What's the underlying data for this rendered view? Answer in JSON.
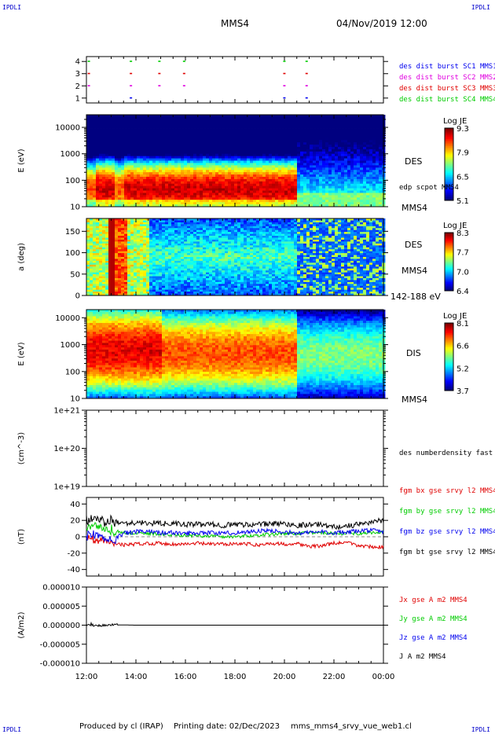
{
  "header": {
    "spacecraft": "MMS4",
    "datetime": "04/Nov/2019 12:00",
    "corner_tl": "IPDLI",
    "corner_tr": "IPDLI",
    "corner_bl": "IPDLI",
    "corner_br": "IPDLI"
  },
  "footer": {
    "produced_by": "Produced by cl (IRAP)",
    "printing_date": "Printing date: 02/Dec/2023",
    "filename": "mms_mms4_srvy_vue_web1.cl"
  },
  "x_axis": {
    "ticks": [
      "12:00",
      "14:00",
      "16:00",
      "18:00",
      "20:00",
      "22:00",
      "00:00"
    ],
    "range_hours": [
      12,
      24
    ]
  },
  "chart_data": [
    {
      "type": "scatter",
      "id": "burst",
      "yticks": [
        "1",
        "2",
        "3",
        "4"
      ],
      "ylim": [
        0.6,
        4.4
      ],
      "legend": [
        {
          "text": "des dist burst SC1 MMS1",
          "color": "#0000ee"
        },
        {
          "text": "des dist burst SC2 MMS2",
          "color": "#e000e0"
        },
        {
          "text": "des dist burst SC3 MMS3",
          "color": "#e00000"
        },
        {
          "text": "des dist burst SC4 MMS4",
          "color": "#00cc00"
        }
      ],
      "series": [
        {
          "y": 4,
          "color": "#00cc00",
          "times": [
            12.05,
            13.75,
            14.9,
            15.9,
            19.95,
            20.85
          ]
        },
        {
          "y": 3,
          "color": "#e00000",
          "times": [
            12.05,
            13.75,
            14.9,
            15.9,
            19.95,
            20.85
          ]
        },
        {
          "y": 2,
          "color": "#e000e0",
          "times": [
            12.05,
            13.75,
            14.9,
            15.9,
            19.95,
            20.85
          ]
        },
        {
          "y": 1,
          "color": "#0000ee",
          "times": [
            13.75,
            19.95,
            20.85
          ]
        }
      ]
    },
    {
      "type": "heatmap",
      "id": "des_energy",
      "ylabel": "E (eV)",
      "ylog": true,
      "ylim": [
        10,
        30000
      ],
      "yticks": [
        "10",
        "100",
        "1000",
        "10000"
      ],
      "right_labels": [
        "DES",
        "edp scpot MMS4",
        "MMS4"
      ],
      "colorbar": {
        "title": "Log JE",
        "ticks": [
          "9.3",
          "7.9",
          "6.5",
          "5.1"
        ]
      },
      "peak_energy_eV": [
        40,
        40,
        45,
        40,
        40,
        45,
        50,
        45,
        40,
        45,
        50,
        45,
        40
      ],
      "peak_time_end_h": 20.5
    },
    {
      "type": "heatmap",
      "id": "des_pitch",
      "ylabel": "a (deg)",
      "ylim": [
        0,
        180
      ],
      "yticks": [
        "0",
        "50",
        "100",
        "150"
      ],
      "right_labels": [
        "DES",
        "MMS4",
        "142-188 eV"
      ],
      "colorbar": {
        "title": "Log JE",
        "ticks": [
          "8.3",
          "7.7",
          "7.0",
          "6.4"
        ]
      }
    },
    {
      "type": "heatmap",
      "id": "dis_energy",
      "ylabel": "E (eV)",
      "ylog": true,
      "ylim": [
        10,
        20000
      ],
      "yticks": [
        "10",
        "100",
        "1000",
        "10000"
      ],
      "right_labels": [
        "DIS",
        "MMS4"
      ],
      "colorbar": {
        "title": "Log JE",
        "ticks": [
          "8.1",
          "6.6",
          "5.2",
          "3.7"
        ]
      },
      "peak_energy_eV": 600,
      "peak_time_end_h": 20.5
    },
    {
      "type": "line",
      "id": "density",
      "ylabel": "(cm^-3)",
      "ylog": true,
      "ylim": [
        1e+19,
        1e+21
      ],
      "yticks": [
        "1e+19",
        "1e+20",
        "1e+21"
      ],
      "series": [],
      "right_labels": [
        "des numberdensity fast M"
      ]
    },
    {
      "type": "line",
      "id": "fgm",
      "ylabel": "(nT)",
      "ylim": [
        -48,
        48
      ],
      "yticks": [
        "-40",
        "-20",
        "0",
        "20",
        "40"
      ],
      "legend": [
        {
          "text": "fgm bx gse srvy l2 MMS4",
          "color": "#e00000"
        },
        {
          "text": "fgm by gse srvy l2 MMS4",
          "color": "#00cc00"
        },
        {
          "text": "fgm bz gse srvy l2 MMS4",
          "color": "#0000ee"
        },
        {
          "text": "fgm bt gse srvy l2 MMS4",
          "color": "#000000"
        }
      ],
      "series": [
        {
          "name": "fgm bx gse srvy l2 MMS4",
          "color": "#e00000",
          "x": [
            12,
            12.5,
            13,
            13.5,
            14,
            14.5,
            15,
            15.5,
            16,
            16.5,
            17,
            17.5,
            18,
            18.5,
            19,
            19.5,
            20,
            20.5,
            21,
            21.5,
            22,
            22.5,
            23,
            23.5,
            24
          ],
          "y": [
            -2,
            -5,
            -8,
            -10,
            -9,
            -8,
            -8,
            -9,
            -9,
            -8,
            -9,
            -9,
            -8,
            -9,
            -10,
            -8,
            -9,
            -8,
            -12,
            -11,
            -8,
            -7,
            -11,
            -12,
            -13
          ]
        },
        {
          "name": "fgm by gse srvy l2 MMS4",
          "color": "#00cc00",
          "x": [
            12,
            12.5,
            13,
            13.5,
            14,
            14.5,
            15,
            15.5,
            16,
            16.5,
            17,
            17.5,
            18,
            18.5,
            19,
            19.5,
            20,
            20.5,
            21,
            21.5,
            22,
            22.5,
            23,
            23.5,
            24
          ],
          "y": [
            10,
            12,
            8,
            5,
            4,
            4,
            3,
            2,
            2,
            1,
            1,
            0,
            0,
            1,
            2,
            3,
            4,
            4,
            5,
            5,
            4,
            4,
            4,
            5,
            5
          ]
        },
        {
          "name": "fgm bz gse srvy l2 MMS4",
          "color": "#0000ee",
          "x": [
            12,
            12.5,
            13,
            13.5,
            14,
            14.5,
            15,
            15.5,
            16,
            16.5,
            17,
            17.5,
            18,
            18.5,
            19,
            19.5,
            20,
            20.5,
            21,
            21.5,
            22,
            22.5,
            23,
            23.5,
            24
          ],
          "y": [
            3,
            0,
            -5,
            4,
            6,
            6,
            5,
            5,
            4,
            5,
            5,
            4,
            5,
            6,
            7,
            7,
            6,
            4,
            5,
            6,
            5,
            5,
            7,
            8,
            6
          ]
        },
        {
          "name": "fgm bt gse srvy l2 MMS4",
          "color": "#000000",
          "x": [
            12,
            12.5,
            13,
            13.5,
            14,
            14.5,
            15,
            15.5,
            16,
            16.5,
            17,
            17.5,
            18,
            18.5,
            19,
            19.5,
            20,
            20.5,
            21,
            21.5,
            22,
            22.5,
            23,
            23.5,
            24
          ],
          "y": [
            20,
            22,
            18,
            17,
            17,
            17,
            16,
            16,
            15,
            15,
            15,
            14,
            15,
            15,
            15,
            16,
            16,
            14,
            15,
            15,
            12,
            13,
            15,
            18,
            20
          ]
        }
      ]
    },
    {
      "type": "line",
      "id": "current",
      "ylabel": "(A/m2)",
      "ylim": [
        -1e-05,
        1e-05
      ],
      "yticks": [
        "0.000010",
        "0.000005",
        "0.000000",
        "-0.000005",
        "-0.000010"
      ],
      "legend": [
        {
          "text": "Jx gse A m2 MMS4",
          "color": "#e00000"
        },
        {
          "text": "Jy gse A m2 MMS4",
          "color": "#00cc00"
        },
        {
          "text": "Jz gse A m2 MMS4",
          "color": "#0000ee"
        },
        {
          "text": "J A m2 MMS4",
          "color": "#000000"
        }
      ],
      "series": [
        {
          "name": "J A m2 MMS4",
          "color": "#000000",
          "x": [
            12,
            12.2,
            12.4,
            13,
            14,
            16,
            18,
            20,
            22,
            24
          ],
          "y": [
            0,
            3e-07,
            -2e-07,
            1e-07,
            0,
            0,
            0,
            0,
            0,
            0
          ]
        }
      ]
    }
  ]
}
